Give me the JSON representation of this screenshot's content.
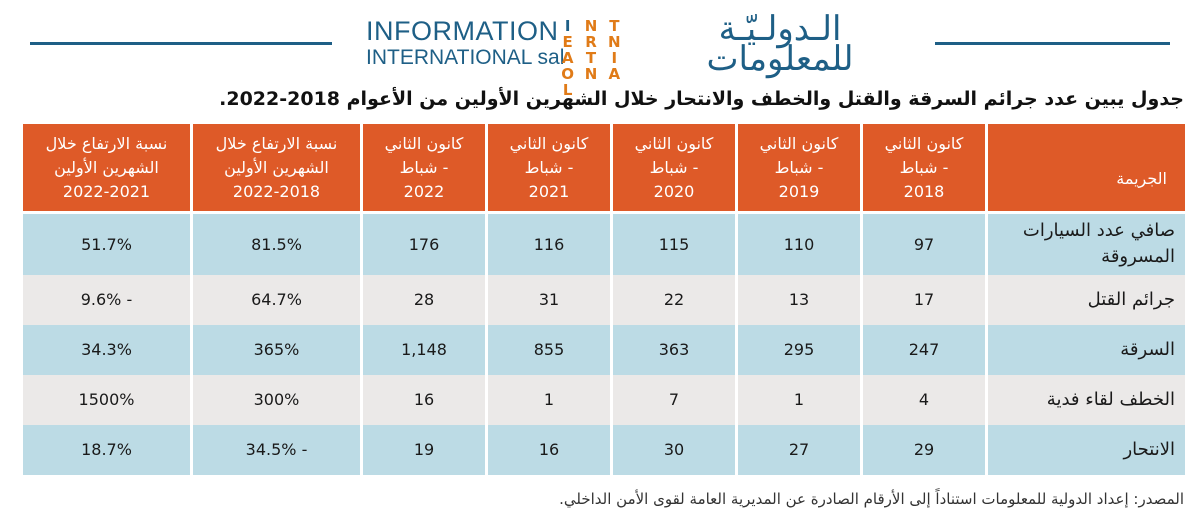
{
  "header": {
    "logo_en_line1": "INFORMATION",
    "logo_en_line2": "INTERNATIONAL sal",
    "logo_ar": "الـدولـيّـة للمعلومات",
    "logo_mark": [
      "I",
      "N",
      "T",
      "E",
      "R",
      "N",
      "A",
      "T",
      "I",
      "O",
      "N",
      "A",
      "L"
    ]
  },
  "title": "جدول يبين عدد جرائم السرقة والقتل والخطف والانتحار خلال الشهرين الأولين من الأعوام 2018-2022.",
  "table": {
    "headers": [
      [
        "الجريمة"
      ],
      [
        "كانون الثاني",
        "- شباط",
        "2018"
      ],
      [
        "كانون الثاني",
        "- شباط",
        "2019"
      ],
      [
        "كانون الثاني",
        "- شباط",
        "2020"
      ],
      [
        "كانون الثاني",
        "- شباط",
        "2021"
      ],
      [
        "كانون الثاني",
        "- شباط",
        "2022"
      ],
      [
        "نسبة الارتفاع خلال",
        "الشهرين الأولين",
        "2022-2018"
      ],
      [
        "نسبة الارتفاع خلال",
        "الشهرين الأولين",
        "2022-2021"
      ]
    ],
    "rows": [
      [
        "صافي عدد السيارات المسروقة",
        "97",
        "110",
        "115",
        "116",
        "176",
        "81.5%",
        "51.7%"
      ],
      [
        "جرائم القتل",
        "17",
        "13",
        "22",
        "31",
        "28",
        "64.7%",
        "- 9.6%"
      ],
      [
        "السرقة",
        "247",
        "295",
        "363",
        "855",
        "1,148",
        "365%",
        "34.3%"
      ],
      [
        "الخطف لقاء فدية",
        "4",
        "1",
        "7",
        "1",
        "16",
        "300%",
        "1500%"
      ],
      [
        "الانتحار",
        "29",
        "27",
        "30",
        "16",
        "19",
        "- 34.5%",
        "18.7%"
      ]
    ]
  },
  "source": "المصدر: إعداد الدولية للمعلومات استناداً إلى الأرقام الصادرة عن المديرية العامة لقوى الأمن الداخلي.",
  "colors": {
    "header_bg": "#de5a28",
    "row_blue": "#bcdbe5",
    "row_grey": "#ebe9e8",
    "brand_blue": "#1e5f86",
    "brand_orange": "#e07b18"
  }
}
